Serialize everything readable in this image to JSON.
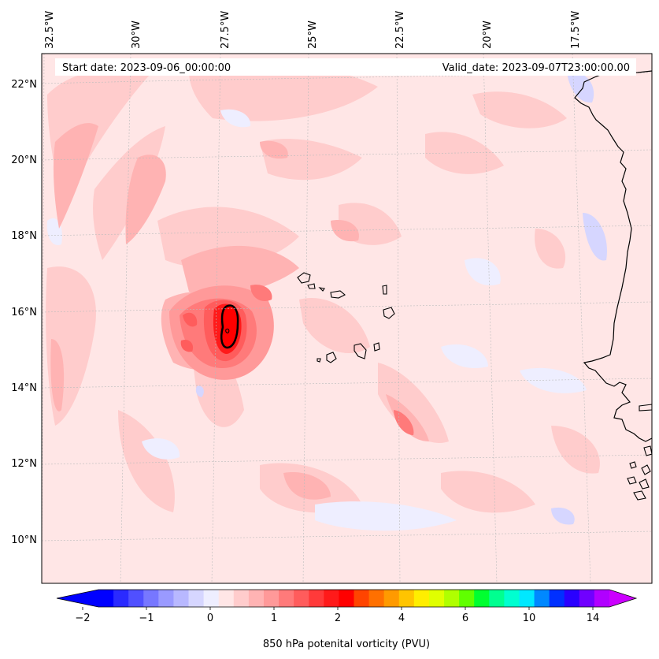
{
  "map": {
    "start_label": "Start date: 2023-09-06_00:00:00",
    "valid_label": "Valid_date: 2023-09-07T23:00:00.00",
    "lon_ticks": [
      "32.5°W",
      "30°W",
      "27.5°W",
      "25°W",
      "22.5°W",
      "20°W",
      "17.5°W"
    ],
    "lat_ticks": [
      "22°N",
      "20°N",
      "18°N",
      "16°N",
      "14°N",
      "12°N",
      "10°N"
    ],
    "field": "850 hPa potential vorticity"
  },
  "colorbar": {
    "label": "850 hPa potenital vorticity (PVU)",
    "tick_labels": [
      "−2",
      "−1",
      "0",
      "1",
      "2",
      "4",
      "6",
      "10",
      "14"
    ],
    "colors": [
      "#0000ff",
      "#2a2aff",
      "#5050ff",
      "#7777ff",
      "#9a9aff",
      "#b8b8ff",
      "#d6d6ff",
      "#eeeeff",
      "#ffe6e6",
      "#ffcccc",
      "#ffb3b3",
      "#ff9999",
      "#ff7a7a",
      "#ff5c5c",
      "#ff3a3a",
      "#ff1a1a",
      "#ff0000",
      "#ff4400",
      "#ff7000",
      "#ff9a00",
      "#ffc400",
      "#ffee00",
      "#e0ff00",
      "#b0ff00",
      "#60ff00",
      "#00ff30",
      "#00ff90",
      "#00ffd0",
      "#00e8ff",
      "#0088ff",
      "#0030ff",
      "#2a00ff",
      "#7000ff",
      "#b000ff"
    ],
    "under_color": "#0000ff",
    "over_color": "#cc00ff"
  },
  "colors": {
    "background_field": "#ffe6e6",
    "vortex_core": "#ff0000",
    "coastline": "#000000"
  }
}
